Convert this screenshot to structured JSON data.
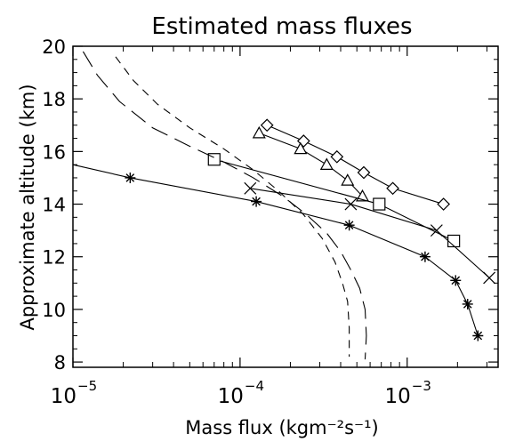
{
  "chart_data": {
    "type": "line",
    "title": "Estimated mass fluxes",
    "xlabel": "Mass flux (kgm⁻²s⁻¹)",
    "ylabel": "Approximate altitude (km)",
    "xscale": "log",
    "xlim": [
      1e-05,
      0.0035
    ],
    "ylim": [
      7.8,
      20
    ],
    "x_ticks": [
      {
        "value": 1e-05,
        "base": "10",
        "exp": "−5"
      },
      {
        "value": 0.0001,
        "base": "10",
        "exp": "−4"
      },
      {
        "value": 0.001,
        "base": "10",
        "exp": "−3"
      }
    ],
    "y_ticks": [
      "8",
      "10",
      "12",
      "14",
      "16",
      "18",
      "20"
    ],
    "grid": false,
    "series": [
      {
        "marker": "diamond",
        "line": "solid",
        "x": [
          0.000145,
          0.00024,
          0.00038,
          0.00055,
          0.00082,
          0.00165
        ],
        "y": [
          17.0,
          16.4,
          15.8,
          15.2,
          14.6,
          14.0
        ]
      },
      {
        "marker": "triangle",
        "line": "solid",
        "x": [
          0.00013,
          0.00023,
          0.00033,
          0.00044,
          0.00054
        ],
        "y": [
          16.7,
          16.1,
          15.5,
          14.9,
          14.3
        ]
      },
      {
        "marker": "square",
        "line": "solid",
        "x": [
          7e-05,
          0.00068,
          0.0019
        ],
        "y": [
          15.7,
          14.0,
          12.6
        ]
      },
      {
        "marker": "x",
        "line": "solid",
        "x": [
          0.000115,
          0.00046,
          0.0015,
          0.0031
        ],
        "y": [
          14.6,
          14.0,
          13.0,
          11.2
        ]
      },
      {
        "marker": "asterisk",
        "line": "solid",
        "x": [
          1e-05,
          2.2e-05,
          0.000125,
          0.00045,
          0.00128,
          0.00195,
          0.0023,
          0.00265
        ],
        "y": [
          15.5,
          15.0,
          14.1,
          13.2,
          12.0,
          11.1,
          10.2,
          9.0
        ],
        "marked": [
          false,
          true,
          true,
          true,
          true,
          true,
          true,
          true
        ]
      },
      {
        "marker": "none",
        "line": "long-dash",
        "x": [
          1.15e-05,
          1.4e-05,
          1.9e-05,
          3e-05,
          5e-05,
          8e-05,
          0.00012,
          0.00018,
          0.00025,
          0.00033,
          0.0004,
          0.00046,
          0.00052,
          0.00056,
          0.00057,
          0.00056
        ],
        "y": [
          19.8,
          18.9,
          17.9,
          16.9,
          16.2,
          15.6,
          15.0,
          14.3,
          13.6,
          12.9,
          12.2,
          11.5,
          10.8,
          10.0,
          9.0,
          8.1
        ]
      },
      {
        "marker": "none",
        "line": "short-dash",
        "x": [
          1.8e-05,
          2.3e-05,
          3.2e-05,
          5e-05,
          8e-05,
          0.00012,
          0.00017,
          0.00024,
          0.00031,
          0.00037,
          0.00041,
          0.00044,
          0.00045,
          0.00045
        ],
        "y": [
          19.6,
          18.7,
          17.8,
          16.9,
          16.1,
          15.3,
          14.5,
          13.6,
          12.7,
          11.8,
          11.0,
          10.3,
          9.3,
          8.2
        ]
      }
    ]
  }
}
